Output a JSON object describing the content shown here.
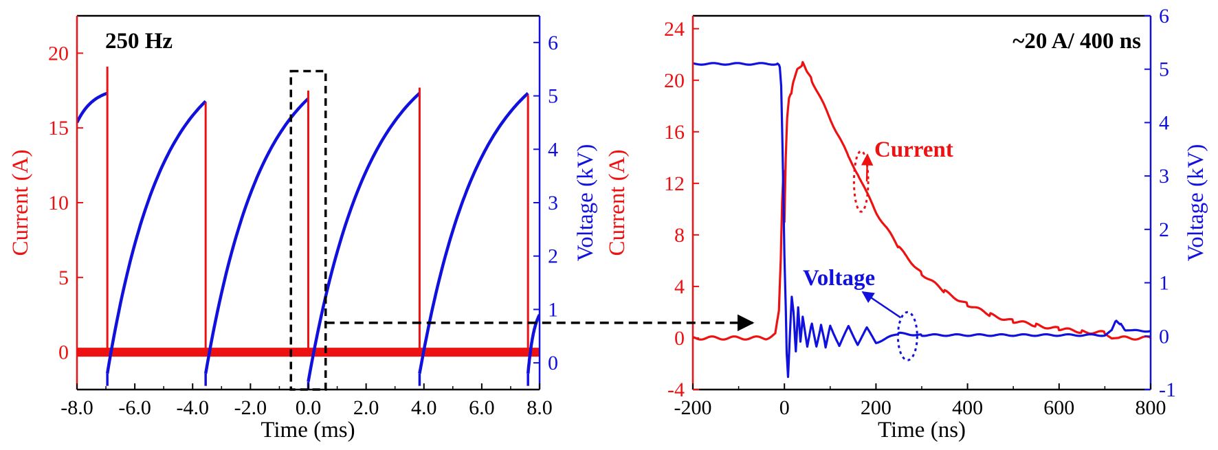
{
  "colors": {
    "current": "#ee1111",
    "voltage": "#1111dd",
    "axis": "#000000",
    "guide": "#000000"
  },
  "chart_data": [
    {
      "type": "line",
      "annotation": "250 Hz",
      "xlabel": "Time (ms)",
      "ylabel_left": "Current (A)",
      "ylabel_right": "Voltage (kV)",
      "xlim": [
        -8.0,
        8.0
      ],
      "ylim_left": [
        -2.5,
        22.5
      ],
      "ylim_right": [
        -0.5,
        6.5
      ],
      "xticks": [
        -8.0,
        -6.0,
        -4.0,
        -2.0,
        0.0,
        2.0,
        4.0,
        6.0,
        8.0
      ],
      "xtick_labels": [
        "-8.0",
        "-6.0",
        "-4.0",
        "-2.0",
        "0.0",
        "2.0",
        "4.0",
        "6.0",
        "8.0"
      ],
      "yticks_left": [
        0,
        5,
        10,
        15,
        20
      ],
      "ytick_labels_left": [
        "0",
        "5",
        "10",
        "15",
        "20"
      ],
      "yticks_right": [
        0,
        1,
        2,
        3,
        4,
        5,
        6
      ],
      "ytick_labels_right": [
        "0",
        "1",
        "2",
        "3",
        "4",
        "5",
        "6"
      ],
      "grid": false,
      "series": [
        {
          "name": "Current",
          "axis": "left",
          "baseline": 0,
          "pulses": [
            {
              "t": -6.95,
              "peak": 19.1
            },
            {
              "t": -3.55,
              "peak": 16.7
            },
            {
              "t": 0.0,
              "peak": 17.5
            },
            {
              "t": 3.85,
              "peak": 17.7
            },
            {
              "t": 7.6,
              "peak": 17.2
            }
          ]
        },
        {
          "name": "Voltage",
          "axis": "right",
          "segments": [
            {
              "t_start": -8.0,
              "t_end": -6.95,
              "v_start": 4.5,
              "v_end": 5.05
            },
            {
              "t_start": -6.95,
              "t_end": -3.55,
              "v_start": -0.2,
              "v_end": 4.9
            },
            {
              "t_start": -3.55,
              "t_end": 0.0,
              "v_start": -0.2,
              "v_end": 4.95
            },
            {
              "t_start": 0.0,
              "t_end": 3.85,
              "v_start": -0.35,
              "v_end": 5.05
            },
            {
              "t_start": 3.85,
              "t_end": 7.6,
              "v_start": -0.2,
              "v_end": 5.05
            },
            {
              "t_start": 7.6,
              "t_end": 8.0,
              "v_start": -0.2,
              "v_end": 0.9
            }
          ]
        }
      ],
      "highlight_box": {
        "x": [
          -0.6,
          0.6
        ],
        "y_left": [
          -2.5,
          18.8
        ]
      }
    },
    {
      "type": "line",
      "annotation": "~20 A/ 400 ns",
      "xlabel": "Time (ns)",
      "ylabel_left": "Current (A)",
      "ylabel_right": "Voltage (kV)",
      "xlim": [
        -200,
        800
      ],
      "ylim_left": [
        -4,
        25
      ],
      "ylim_right": [
        -1,
        6
      ],
      "xticks": [
        -200,
        0,
        200,
        400,
        600,
        800
      ],
      "xtick_labels": [
        "-200",
        "0",
        "200",
        "400",
        "600",
        "800"
      ],
      "yticks_left": [
        -4,
        0,
        4,
        8,
        12,
        16,
        20,
        24
      ],
      "ytick_labels_left": [
        "-4",
        "0",
        "4",
        "8",
        "12",
        "16",
        "20",
        "24"
      ],
      "yticks_right": [
        -1,
        0,
        1,
        2,
        3,
        4,
        5,
        6
      ],
      "ytick_labels_right": [
        "-1",
        "0",
        "1",
        "2",
        "3",
        "4",
        "5",
        "6"
      ],
      "grid": false,
      "labels": [
        {
          "text": "Current",
          "series": "Current"
        },
        {
          "text": "Voltage",
          "series": "Voltage"
        }
      ],
      "series": [
        {
          "name": "Current",
          "axis": "left",
          "x": [
            -200,
            -40,
            -20,
            -12,
            -8,
            -5,
            -2,
            0,
            3,
            6,
            10,
            15,
            20,
            30,
            40,
            50,
            60,
            80,
            100,
            120,
            140,
            160,
            180,
            200,
            250,
            300,
            350,
            400,
            450,
            500,
            550,
            600,
            650,
            700,
            715,
            730,
            800
          ],
          "y": [
            0,
            0,
            0.3,
            2,
            6,
            10.5,
            13,
            9,
            14,
            17,
            18.5,
            19,
            20,
            21,
            21.3,
            20.6,
            20,
            18.5,
            17,
            15.6,
            14,
            12.8,
            11.2,
            9.8,
            7,
            5,
            3.6,
            2.6,
            1.8,
            1.3,
            1.0,
            0.7,
            0.5,
            0.4,
            0,
            0,
            0
          ]
        },
        {
          "name": "Voltage",
          "axis": "right",
          "x": [
            -200,
            -15,
            -10,
            -7,
            -4,
            -2,
            0,
            3,
            5,
            8,
            12,
            16,
            20,
            25,
            30,
            35,
            40,
            50,
            60,
            70,
            80,
            90,
            100,
            120,
            140,
            160,
            180,
            200,
            250,
            300,
            400,
            500,
            600,
            700,
            715,
            725,
            735,
            745,
            760,
            800
          ],
          "y": [
            5.1,
            5.1,
            5.05,
            4.7,
            3.5,
            2.5,
            1.5,
            0.5,
            -0.3,
            -0.75,
            0.05,
            0.75,
            0.45,
            -0.3,
            0.55,
            -0.1,
            0.35,
            -0.2,
            0.25,
            -0.2,
            0.2,
            -0.2,
            0.2,
            -0.18,
            0.18,
            -0.15,
            0.15,
            -0.12,
            0.05,
            0.02,
            0.02,
            0.02,
            0.02,
            0.02,
            0.12,
            0.3,
            0.22,
            0.1,
            0.1,
            0.1
          ]
        }
      ],
      "highlight_ellipses": [
        {
          "series": "Current",
          "x": [
            152,
            183
          ],
          "y": [
            9.8,
            14.5
          ]
        },
        {
          "series": "Voltage",
          "x": [
            248,
            290
          ],
          "y": [
            -0.45,
            0.45
          ]
        }
      ]
    }
  ]
}
